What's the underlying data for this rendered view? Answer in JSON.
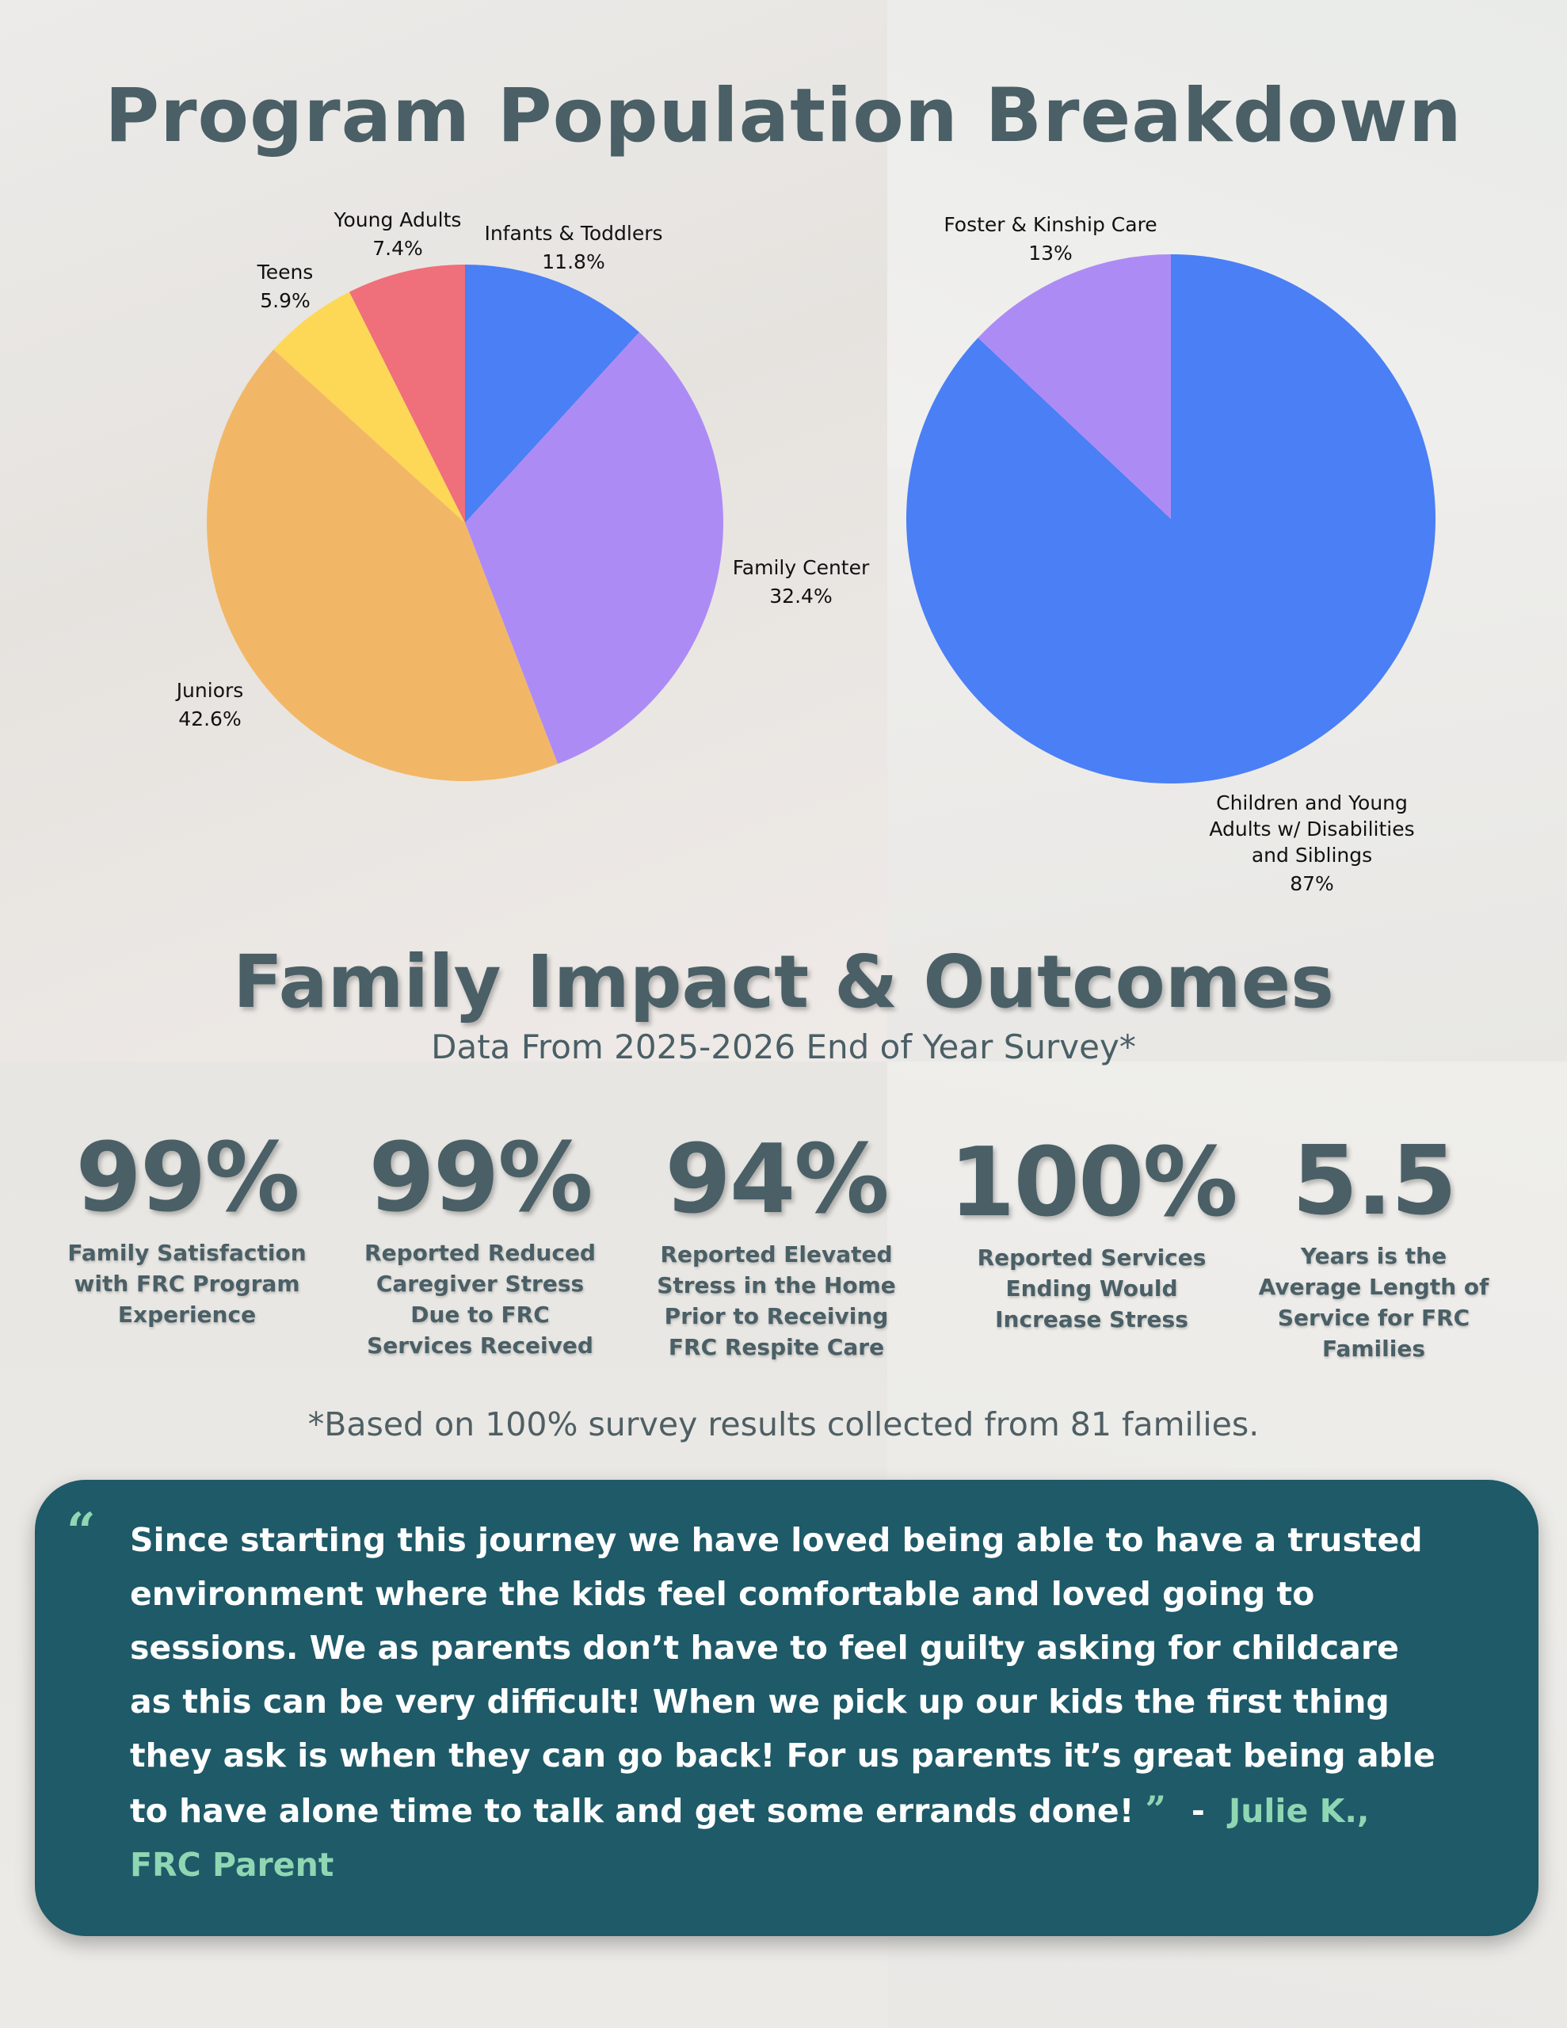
{
  "header": {
    "title": "Program Population Breakdown"
  },
  "chart_data": [
    {
      "type": "pie",
      "slices": [
        {
          "label": "Infants & Toddlers",
          "value": 11.8,
          "value_label": "11.8%",
          "color": "#4a7ff5"
        },
        {
          "label": "Family Center",
          "value": 32.4,
          "value_label": "32.4%",
          "color": "#ad8bf5"
        },
        {
          "label": "Juniors",
          "value": 42.6,
          "value_label": "42.6%",
          "color": "#f2b766"
        },
        {
          "label": "Teens",
          "value": 5.9,
          "value_label": "5.9%",
          "color": "#fdd857"
        },
        {
          "label": "Young Adults",
          "value": 7.4,
          "value_label": "7.4%",
          "color": "#ef6f7a"
        }
      ]
    },
    {
      "type": "pie",
      "slices": [
        {
          "label": "Children and Young Adults w/ Disabilities and Siblings",
          "label_lines": [
            "Children and Young",
            "Adults w/ Disabilities",
            "and Siblings"
          ],
          "value": 87,
          "value_label": "87%",
          "color": "#4a7ff5"
        },
        {
          "label": "Foster & Kinship Care",
          "label_lines": [
            "Foster & Kinship Care"
          ],
          "value": 13,
          "value_label": "13%",
          "color": "#ad8bf5"
        }
      ]
    }
  ],
  "impact": {
    "title": "Family Impact & Outcomes",
    "subtitle": "Data From 2025-2026 End of Year Survey*",
    "stats": [
      {
        "value": "99%",
        "label_lines": [
          "Family Satisfaction",
          "with FRC Program",
          "Experience"
        ]
      },
      {
        "value": "99%",
        "label_lines": [
          "Reported Reduced",
          "Caregiver Stress",
          "Due to FRC",
          "Services Received"
        ]
      },
      {
        "value": "94%",
        "label_lines": [
          "Reported Elevated",
          "Stress in the Home",
          "Prior to Receiving",
          "FRC Respite Care"
        ]
      },
      {
        "value": "100%",
        "label_lines": [
          "Reported Services",
          "Ending Would",
          "Increase Stress"
        ]
      },
      {
        "value": "5.5",
        "label_lines": [
          "Years is the",
          "Average Length of",
          "Service for FRC",
          "Families"
        ]
      }
    ],
    "footnote": "*Based on 100% survey results collected from 81 families."
  },
  "testimonial": {
    "open_mark": "“",
    "text": "Since starting this journey we have loved being able to have a trusted environment where the kids feel comfortable and loved going to sessions. We as parents don’t have to feel guilty asking for childcare as this can be very difficult! When we pick up our kids the first thing they ask is when they can go back! For us parents it’s great being able to have alone time to talk and get some errands done!",
    "close_mark": "”",
    "dash": "-",
    "author": "Julie K., FRC Parent",
    "colors": {
      "box": "#1e5a68",
      "accent": "#8fd6b3"
    }
  }
}
